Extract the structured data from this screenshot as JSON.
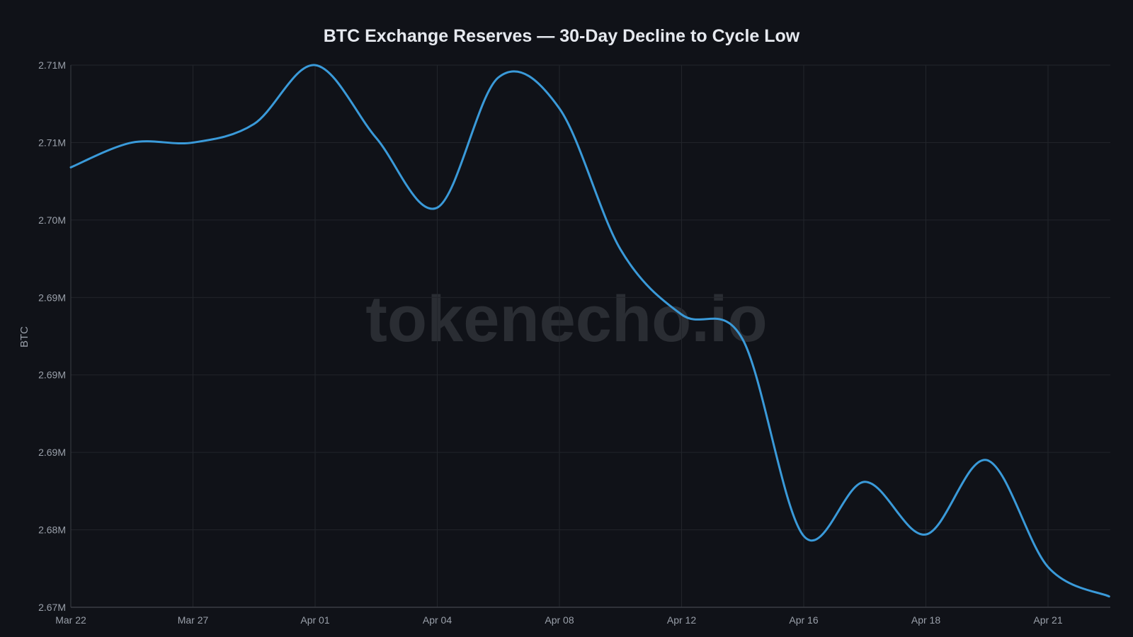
{
  "chart_data": {
    "type": "line",
    "title": "BTC Exchange Reserves — 30-Day Decline to Cycle Low",
    "ylabel": "BTC",
    "xlabel": "",
    "watermark": "tokenecho.io",
    "categories": [
      "Mar 22",
      "",
      "Mar 27",
      "",
      "Apr 01",
      "",
      "Apr 04",
      "",
      "Apr 08",
      "",
      "Apr 12",
      "",
      "Apr 16",
      "",
      "Apr 18",
      "",
      "Apr 21",
      ""
    ],
    "x_tick_labels": [
      "Mar 22",
      "Mar 27",
      "Apr 01",
      "Apr 04",
      "Apr 08",
      "Apr 12",
      "Apr 16",
      "Apr 18",
      "Apr 21"
    ],
    "y_ticks": [
      2.675,
      2.68,
      2.685,
      2.69,
      2.695,
      2.7,
      2.705,
      2.71
    ],
    "y_tick_labels": [
      "2.67M",
      "2.68M",
      "2.69M",
      "2.69M",
      "2.69M",
      "2.70M",
      "2.71M",
      "2.71M"
    ],
    "ylim": [
      2.675,
      2.71
    ],
    "y_unit": "millions BTC",
    "grid": true,
    "series": [
      {
        "values": [
          2.7034,
          2.705,
          2.705,
          2.7062,
          2.71,
          2.7053,
          2.7008,
          2.7092,
          2.7072,
          2.6981,
          2.6939,
          2.6923,
          2.6796,
          2.6831,
          2.6797,
          2.6845,
          2.6776,
          2.6757
        ]
      }
    ],
    "colors": {
      "background": "#101218",
      "line": "#3a9ad9",
      "grid": "#22252b",
      "axis": "#3a3d44",
      "text": "#9aa0aa",
      "title": "#e6e9ef",
      "watermark": "#2a2d33"
    }
  }
}
